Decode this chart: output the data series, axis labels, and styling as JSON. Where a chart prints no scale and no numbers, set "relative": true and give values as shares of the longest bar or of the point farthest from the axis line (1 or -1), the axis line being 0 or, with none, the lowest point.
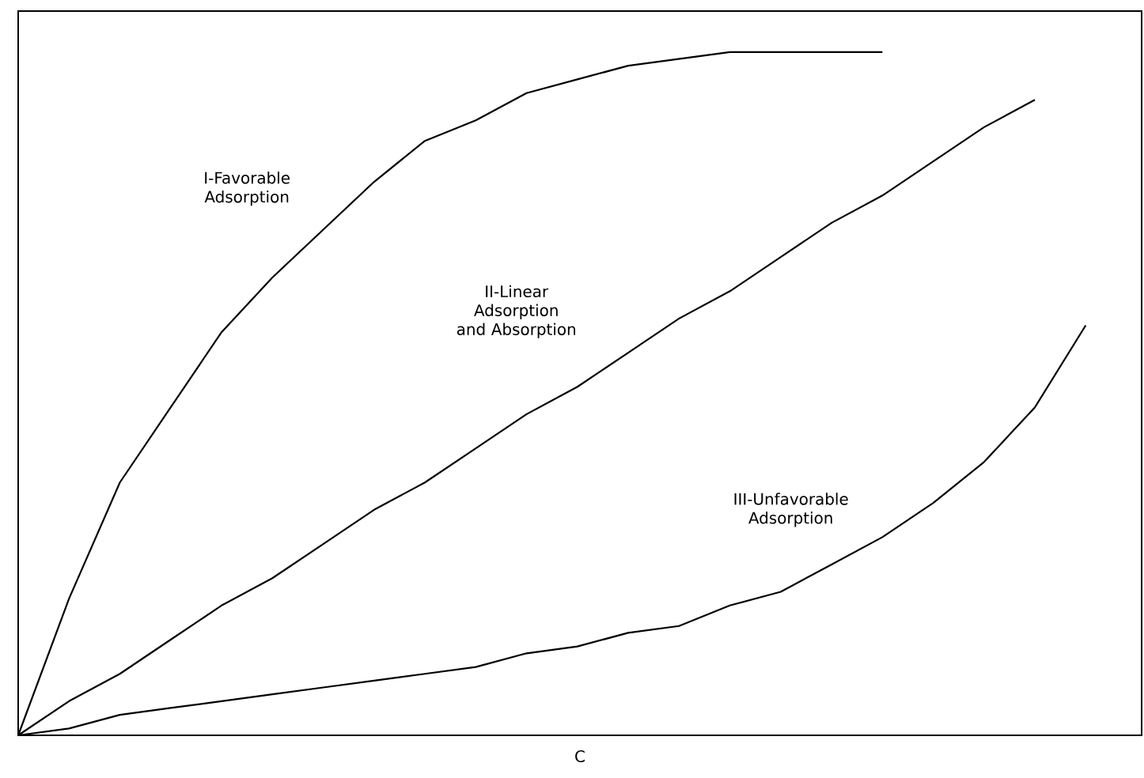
{
  "chart_data": {
    "type": "line",
    "relative": true,
    "xlabel": "C",
    "tick_labels": false,
    "marker": "none",
    "line_style": "solid",
    "categories": [
      null,
      null,
      null,
      null,
      null,
      null,
      null,
      null,
      null,
      null,
      null,
      null,
      null,
      null,
      null,
      null,
      null,
      null,
      null,
      null,
      null,
      null,
      null
    ],
    "series": [
      {
        "color": "#000000",
        "values": [
          0,
          0.2,
          0.37,
          0.48,
          0.59,
          0.67,
          0.74,
          0.81,
          0.87,
          0.9,
          0.94,
          0.96,
          0.98,
          0.99,
          1.0,
          1.0,
          1.0,
          1.0,
          null,
          null,
          null,
          null,
          null
        ]
      },
      {
        "color": "#000000",
        "values": [
          0,
          0.05,
          0.09,
          0.14,
          0.19,
          0.23,
          0.28,
          0.33,
          0.37,
          0.42,
          0.47,
          0.51,
          0.56,
          0.61,
          0.65,
          0.7,
          0.75,
          0.79,
          0.84,
          0.89,
          0.93,
          null,
          null
        ]
      },
      {
        "color": "#000000",
        "values": [
          0,
          0.01,
          0.03,
          0.04,
          0.05,
          0.06,
          0.07,
          0.08,
          0.09,
          0.1,
          0.12,
          0.13,
          0.15,
          0.16,
          0.19,
          0.21,
          0.25,
          0.29,
          0.34,
          0.4,
          0.48,
          0.6,
          null
        ]
      }
    ],
    "annotations": [
      "I-Favorable Adsorption",
      "II-Linear Adsorption and Absorption",
      "III-Unfavorable Adsorption"
    ]
  }
}
